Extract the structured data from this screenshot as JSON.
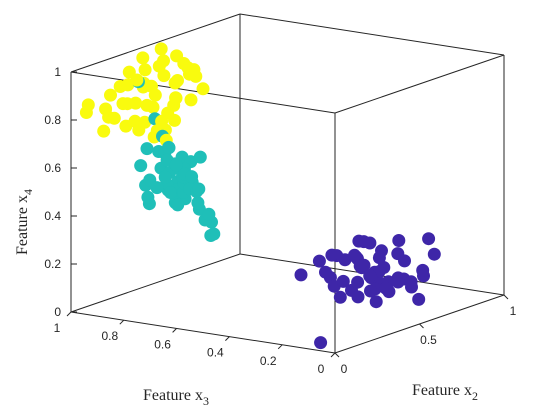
{
  "chart_data": {
    "type": "scatter",
    "dimensions": 3,
    "xlabel": {
      "text": "Feature x",
      "sub": "2"
    },
    "ylabel": {
      "text": "Feature x",
      "sub": "3"
    },
    "zlabel": {
      "text": "Feature x",
      "sub": "4"
    },
    "xlim": [
      0,
      1
    ],
    "ylim": [
      0,
      1
    ],
    "zlim": [
      0,
      1
    ],
    "x_ticks": [
      "0",
      "0.5",
      "1"
    ],
    "y_ticks": [
      "0",
      "0.2",
      "0.4",
      "0.6",
      "0.8",
      "1"
    ],
    "z_ticks": [
      "0",
      "0.2",
      "0.4",
      "0.6",
      "0.8",
      "1"
    ],
    "grid": false,
    "box": true,
    "series": [
      {
        "color": "#3e26a8",
        "points": [
          [
            0.04,
            0.08,
            0.02
          ],
          [
            0.4,
            0.1,
            0.1
          ],
          [
            0.48,
            0.22,
            0.08
          ],
          [
            0.52,
            0.14,
            0.12
          ],
          [
            0.55,
            0.2,
            0.1
          ],
          [
            0.58,
            0.24,
            0.14
          ],
          [
            0.6,
            0.18,
            0.08
          ],
          [
            0.62,
            0.26,
            0.12
          ],
          [
            0.64,
            0.3,
            0.16
          ],
          [
            0.66,
            0.22,
            0.1
          ],
          [
            0.68,
            0.34,
            0.14
          ],
          [
            0.7,
            0.28,
            0.18
          ],
          [
            0.72,
            0.36,
            0.12
          ],
          [
            0.74,
            0.4,
            0.16
          ],
          [
            0.76,
            0.32,
            0.1
          ],
          [
            0.78,
            0.42,
            0.14
          ],
          [
            0.8,
            0.38,
            0.2
          ],
          [
            0.82,
            0.44,
            0.12
          ],
          [
            0.84,
            0.3,
            0.16
          ],
          [
            0.86,
            0.46,
            0.18
          ],
          [
            0.9,
            0.4,
            0.14
          ],
          [
            0.92,
            0.48,
            0.16
          ],
          [
            0.62,
            0.4,
            0.06
          ],
          [
            0.72,
            0.2,
            0.1
          ],
          [
            0.58,
            0.34,
            0.1
          ],
          [
            0.5,
            0.3,
            0.06
          ],
          [
            0.66,
            0.44,
            0.08
          ],
          [
            0.96,
            0.26,
            0.2
          ],
          [
            0.56,
            0.12,
            0.14
          ],
          [
            0.7,
            0.16,
            0.1
          ],
          [
            0.78,
            0.26,
            0.08
          ],
          [
            0.88,
            0.3,
            0.12
          ],
          [
            0.64,
            0.12,
            0.1
          ],
          [
            0.54,
            0.26,
            0.12
          ],
          [
            0.74,
            0.3,
            0.06
          ],
          [
            0.82,
            0.34,
            0.1
          ],
          [
            0.6,
            0.42,
            0.12
          ],
          [
            0.68,
            0.1,
            0.14
          ],
          [
            0.84,
            0.5,
            0.1
          ],
          [
            0.76,
            0.48,
            0.14
          ],
          [
            0.46,
            0.16,
            0.12
          ],
          [
            0.9,
            0.2,
            0.16
          ],
          [
            0.72,
            0.52,
            0.12
          ],
          [
            0.62,
            0.08,
            0.06
          ],
          [
            0.8,
            0.18,
            0.12
          ],
          [
            0.94,
            0.36,
            0.18
          ],
          [
            0.66,
            0.36,
            0.04
          ],
          [
            0.58,
            0.5,
            0.1
          ],
          [
            0.86,
            0.4,
            0.06
          ],
          [
            0.7,
            0.46,
            0.16
          ]
        ]
      },
      {
        "color": "#1fbfb8",
        "points": [
          [
            0.08,
            0.68,
            0.72
          ],
          [
            0.1,
            0.7,
            0.66
          ],
          [
            0.12,
            0.72,
            0.58
          ],
          [
            0.14,
            0.66,
            0.62
          ],
          [
            0.16,
            0.74,
            0.54
          ],
          [
            0.18,
            0.7,
            0.6
          ],
          [
            0.2,
            0.76,
            0.5
          ],
          [
            0.22,
            0.72,
            0.64
          ],
          [
            0.24,
            0.78,
            0.56
          ],
          [
            0.26,
            0.74,
            0.48
          ],
          [
            0.12,
            0.62,
            0.6
          ],
          [
            0.14,
            0.6,
            0.68
          ],
          [
            0.06,
            0.64,
            0.66
          ],
          [
            0.1,
            0.58,
            0.56
          ],
          [
            0.18,
            0.64,
            0.52
          ],
          [
            0.22,
            0.66,
            0.46
          ],
          [
            0.26,
            0.68,
            0.42
          ],
          [
            0.2,
            0.62,
            0.4
          ],
          [
            0.16,
            0.58,
            0.44
          ],
          [
            0.3,
            0.76,
            0.44
          ],
          [
            0.28,
            0.72,
            0.52
          ],
          [
            0.32,
            0.8,
            0.5
          ],
          [
            0.24,
            0.7,
            0.62
          ],
          [
            0.18,
            0.76,
            0.66
          ],
          [
            0.14,
            0.72,
            0.7
          ],
          [
            0.22,
            0.8,
            0.58
          ],
          [
            0.2,
            0.84,
            0.66
          ],
          [
            0.1,
            0.8,
            0.62
          ],
          [
            0.06,
            0.74,
            0.58
          ],
          [
            0.08,
            0.76,
            0.5
          ],
          [
            0.12,
            0.78,
            0.46
          ],
          [
            0.16,
            0.82,
            0.52
          ],
          [
            0.04,
            0.7,
            0.56
          ],
          [
            0.26,
            0.82,
            0.7
          ],
          [
            0.3,
            0.86,
            0.62
          ],
          [
            0.34,
            0.9,
            0.74
          ],
          [
            0.22,
            0.6,
            0.34
          ],
          [
            0.14,
            0.56,
            0.36
          ],
          [
            0.3,
            0.66,
            0.36
          ],
          [
            0.18,
            0.86,
            0.94
          ],
          [
            0.1,
            0.66,
            0.48
          ],
          [
            0.12,
            0.7,
            0.52
          ],
          [
            0.16,
            0.68,
            0.58
          ],
          [
            0.2,
            0.7,
            0.54
          ],
          [
            0.24,
            0.76,
            0.6
          ],
          [
            0.28,
            0.78,
            0.46
          ],
          [
            0.08,
            0.62,
            0.62
          ],
          [
            0.14,
            0.64,
            0.54
          ],
          [
            0.22,
            0.74,
            0.5
          ],
          [
            0.18,
            0.72,
            0.46
          ]
        ]
      },
      {
        "color": "#f9fb0e",
        "points": [
          [
            0.04,
            0.96,
            0.86
          ],
          [
            0.06,
            0.98,
            0.82
          ],
          [
            0.08,
            0.92,
            0.84
          ],
          [
            0.1,
            0.9,
            0.8
          ],
          [
            0.12,
            0.88,
            0.86
          ],
          [
            0.14,
            0.94,
            0.88
          ],
          [
            0.16,
            0.86,
            0.78
          ],
          [
            0.18,
            0.9,
            0.92
          ],
          [
            0.2,
            0.84,
            0.84
          ],
          [
            0.22,
            0.92,
            0.96
          ],
          [
            0.24,
            0.88,
            0.9
          ],
          [
            0.26,
            0.8,
            0.8
          ],
          [
            0.28,
            0.86,
            0.86
          ],
          [
            0.3,
            0.84,
            0.94
          ],
          [
            0.32,
            0.9,
            0.88
          ],
          [
            0.34,
            0.82,
            0.84
          ],
          [
            0.36,
            0.88,
            0.98
          ],
          [
            0.38,
            0.84,
            0.9
          ],
          [
            0.4,
            0.86,
            0.82
          ],
          [
            0.42,
            0.82,
            0.92
          ],
          [
            0.44,
            0.94,
            1.0
          ],
          [
            0.46,
            0.9,
            0.86
          ],
          [
            0.48,
            0.88,
            0.94
          ],
          [
            0.5,
            0.92,
            0.96
          ],
          [
            0.52,
            0.86,
            0.88
          ],
          [
            0.16,
            0.96,
            0.78
          ],
          [
            0.2,
            0.92,
            0.74
          ],
          [
            0.24,
            0.94,
            0.82
          ],
          [
            0.28,
            0.9,
            0.74
          ],
          [
            0.32,
            0.96,
            0.8
          ],
          [
            0.36,
            0.92,
            0.78
          ],
          [
            0.4,
            0.98,
            0.86
          ],
          [
            0.12,
            0.82,
            0.76
          ],
          [
            0.18,
            0.8,
            0.72
          ],
          [
            0.22,
            0.78,
            0.7
          ],
          [
            0.26,
            0.84,
            0.72
          ],
          [
            0.3,
            0.8,
            0.76
          ],
          [
            0.34,
            0.86,
            0.7
          ],
          [
            0.38,
            0.9,
            0.72
          ],
          [
            0.42,
            0.88,
            0.78
          ],
          [
            0.46,
            0.84,
            0.8
          ],
          [
            0.5,
            0.82,
            0.84
          ],
          [
            0.54,
            0.88,
            0.9
          ],
          [
            0.14,
            0.84,
            0.96
          ],
          [
            0.22,
            0.86,
            0.98
          ],
          [
            0.3,
            0.92,
            1.0
          ],
          [
            0.38,
            0.8,
            0.96
          ],
          [
            0.46,
            0.96,
            0.92
          ],
          [
            0.1,
            0.94,
            0.74
          ],
          [
            0.26,
            0.98,
            0.88
          ]
        ]
      }
    ]
  }
}
